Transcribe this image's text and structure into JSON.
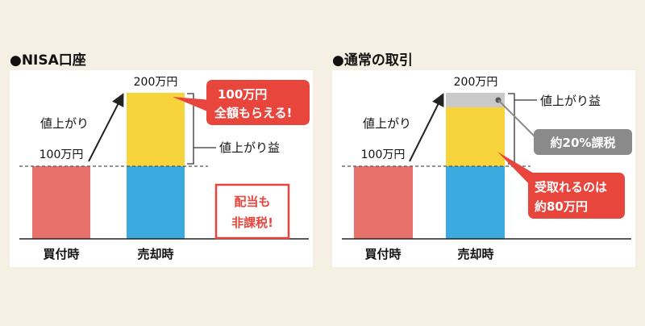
{
  "colors": {
    "background": "#f5f0e3",
    "panel": "#ffffff",
    "red_bar": "#e8716b",
    "yellow": "#f7d33c",
    "blue": "#3aaadf",
    "gray": "#c9c9c9",
    "callout_red": "#e8463d",
    "callout_gray": "#8a8a8a"
  },
  "panels": {
    "left": {
      "heading": "●NISA口座",
      "label_gain": "値上がり",
      "label_gain_portion": "値上がり益",
      "callout_lines": [
        "100万円",
        "全額もらえる!"
      ],
      "stamp_lines": [
        "配当も",
        "非課税!"
      ]
    },
    "right": {
      "heading": "●通常の取引",
      "label_gain": "値上がり",
      "label_gain_portion": "値上がり益",
      "tax_callout": "約20%課税",
      "receive_lines": [
        "受取れるのは",
        "約80万円"
      ]
    }
  },
  "chart_data": [
    {
      "type": "bar",
      "title": "●NISA口座",
      "categories": [
        "買付時",
        "売却時"
      ],
      "series": [
        {
          "name": "",
          "values": [
            100,
            100
          ]
        },
        {
          "name": "",
          "values": [
            0,
            100
          ]
        }
      ],
      "value_labels": [
        "100万円",
        "200万円"
      ],
      "ylim": [
        0,
        200
      ]
    },
    {
      "type": "bar",
      "title": "●通常の取引",
      "categories": [
        "買付時",
        "売却時"
      ],
      "series": [
        {
          "name": "",
          "values": [
            100,
            100
          ]
        },
        {
          "name": "",
          "values": [
            0,
            80
          ]
        },
        {
          "name": "",
          "values": [
            0,
            20
          ]
        }
      ],
      "value_labels": [
        "100万円",
        "200万円"
      ],
      "ylim": [
        0,
        200
      ]
    }
  ]
}
